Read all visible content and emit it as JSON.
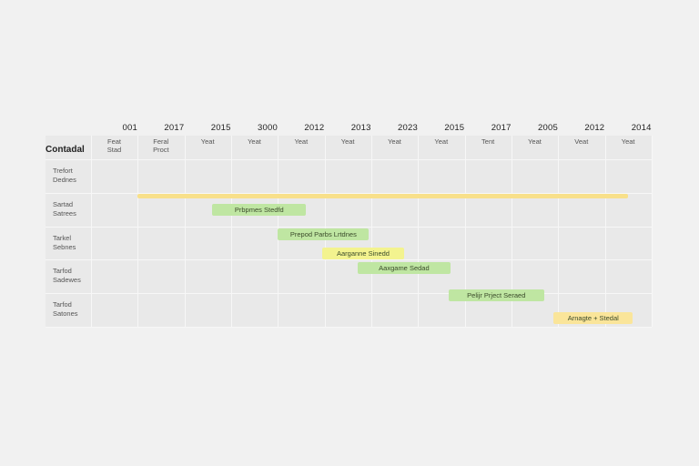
{
  "chart_data": {
    "type": "gantt",
    "corner_label": "Contadal",
    "years": [
      "001",
      "2017",
      "2015",
      "3000",
      "2012",
      "2013",
      "2023",
      "2015",
      "2017",
      "2005",
      "2012",
      "2014"
    ],
    "columns": [
      {
        "line1": "Feat",
        "line2": "Stad"
      },
      {
        "line1": "Feral",
        "line2": "Proct"
      },
      {
        "line1": "Yeat",
        "line2": ""
      },
      {
        "line1": "Yeat",
        "line2": ""
      },
      {
        "line1": "Yeat",
        "line2": ""
      },
      {
        "line1": "Yeat",
        "line2": ""
      },
      {
        "line1": "Yeat",
        "line2": ""
      },
      {
        "line1": "Yeat",
        "line2": ""
      },
      {
        "line1": "Tent",
        "line2": ""
      },
      {
        "line1": "Yeat",
        "line2": ""
      },
      {
        "line1": "Veat",
        "line2": ""
      },
      {
        "line1": "Yeat",
        "line2": ""
      }
    ],
    "rows": [
      {
        "line1": "Trefort",
        "line2": "Dednes"
      },
      {
        "line1": "Sartad",
        "line2": "Satrees"
      },
      {
        "line1": "Tarkel",
        "line2": "Sebnes"
      },
      {
        "line1": "Tarfod",
        "line2": "Sadewes"
      },
      {
        "line1": "Tarfod",
        "line2": "Satones"
      }
    ],
    "bars": [
      {
        "label": "",
        "start": 1.0,
        "end": 11.5,
        "row": 1.1,
        "color": "#f8e08a",
        "style": "line"
      },
      {
        "label": "Prbpmes Stedfd",
        "start": 2.6,
        "end": 4.6,
        "row": 1.5,
        "color": "#bfe6a2",
        "style": "bar"
      },
      {
        "label": "Prepod Parbs Lrtdnes",
        "start": 4.0,
        "end": 5.95,
        "row": 2.25,
        "color": "#bfe6a2",
        "style": "bar"
      },
      {
        "label": "Aarganne Sinedd",
        "start": 4.95,
        "end": 6.7,
        "row": 2.8,
        "color": "#f3f38f",
        "style": "bar"
      },
      {
        "label": "Aaxgame Sedad",
        "start": 5.7,
        "end": 7.7,
        "row": 3.25,
        "color": "#bfe6a2",
        "style": "bar"
      },
      {
        "label": "Pelijr Prject Seraed",
        "start": 7.65,
        "end": 9.7,
        "row": 4.05,
        "color": "#bfe6a2",
        "style": "bar"
      },
      {
        "label": "Arnagte + Stedal",
        "start": 9.9,
        "end": 11.6,
        "row": 4.75,
        "color": "#fae59a",
        "style": "bar"
      }
    ]
  }
}
